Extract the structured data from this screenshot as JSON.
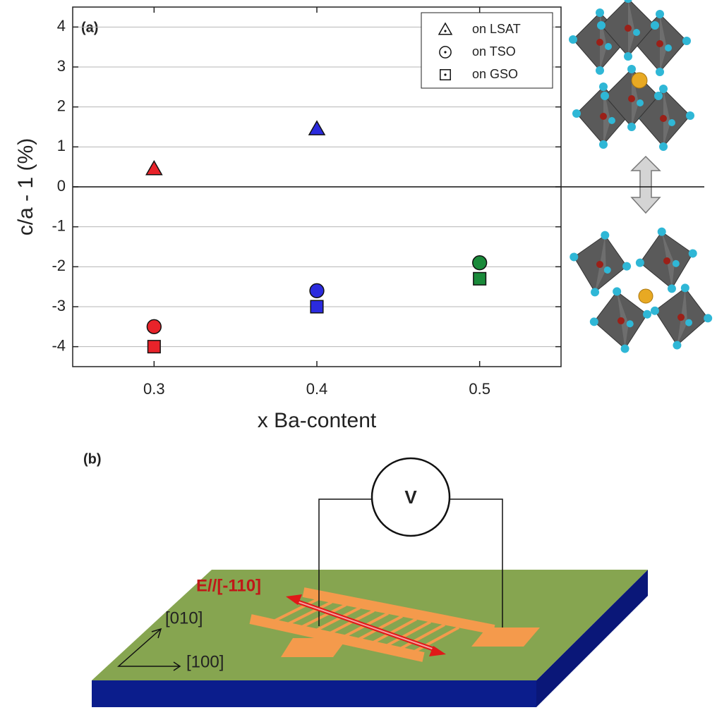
{
  "chart_data": {
    "type": "scatter",
    "annotation": "(a)",
    "y_label": "c/a - 1 (%)",
    "x_label": "x Ba-content",
    "xlim": [
      0.25,
      0.55
    ],
    "xticks": [
      0.3,
      0.4,
      0.5
    ],
    "ylim": [
      -4.5,
      4.5
    ],
    "yticks": [
      -4,
      -3,
      -2,
      -1,
      0,
      1,
      2,
      3,
      4
    ],
    "grid": true,
    "legend": "upper right",
    "series": [
      {
        "name": "on LSAT",
        "marker": "triangle",
        "x": [
          0.3,
          0.4
        ],
        "values": [
          0.45,
          1.45
        ],
        "colors": [
          "#e8232a",
          "#2b2bde"
        ]
      },
      {
        "name": "on TSO",
        "marker": "circle",
        "x": [
          0.3,
          0.4,
          0.5
        ],
        "values": [
          -3.5,
          -2.6,
          -1.9
        ],
        "colors": [
          "#e8232a",
          "#2b2bde",
          "#1a8a3a"
        ]
      },
      {
        "name": "on GSO",
        "marker": "square",
        "x": [
          0.3,
          0.4,
          0.5
        ],
        "values": [
          -4.0,
          -3.0,
          -2.3
        ],
        "colors": [
          "#e8232a",
          "#2b2bde",
          "#1a8a3a"
        ]
      }
    ]
  },
  "panel_b": {
    "label": "(b)",
    "voltmeter": "V",
    "field": "E//[-110]",
    "axis_1": "[010]",
    "axis_2": "[100]"
  }
}
